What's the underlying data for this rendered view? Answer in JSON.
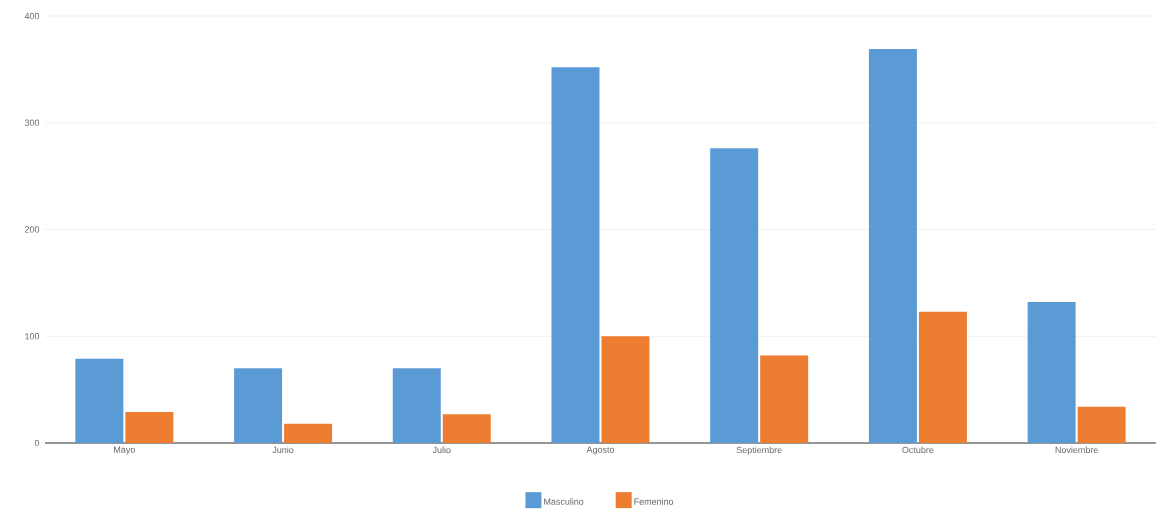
{
  "chart_data": {
    "type": "bar",
    "categories": [
      "Mayo",
      "Junio",
      "Julio",
      "Agosto",
      "Septiembre",
      "Octubre",
      "Noviembre"
    ],
    "series": [
      {
        "name": "Masculino",
        "color": "#5b9bd5",
        "values": [
          79,
          70,
          70,
          352,
          276,
          369,
          132
        ]
      },
      {
        "name": "Femenino",
        "color": "#ed7d31",
        "values": [
          29,
          18,
          27,
          100,
          82,
          123,
          34
        ]
      }
    ],
    "ylim": [
      0,
      400
    ],
    "yticks": [
      0,
      100,
      200,
      300,
      400
    ],
    "grid": "y",
    "legend": "bottom"
  }
}
